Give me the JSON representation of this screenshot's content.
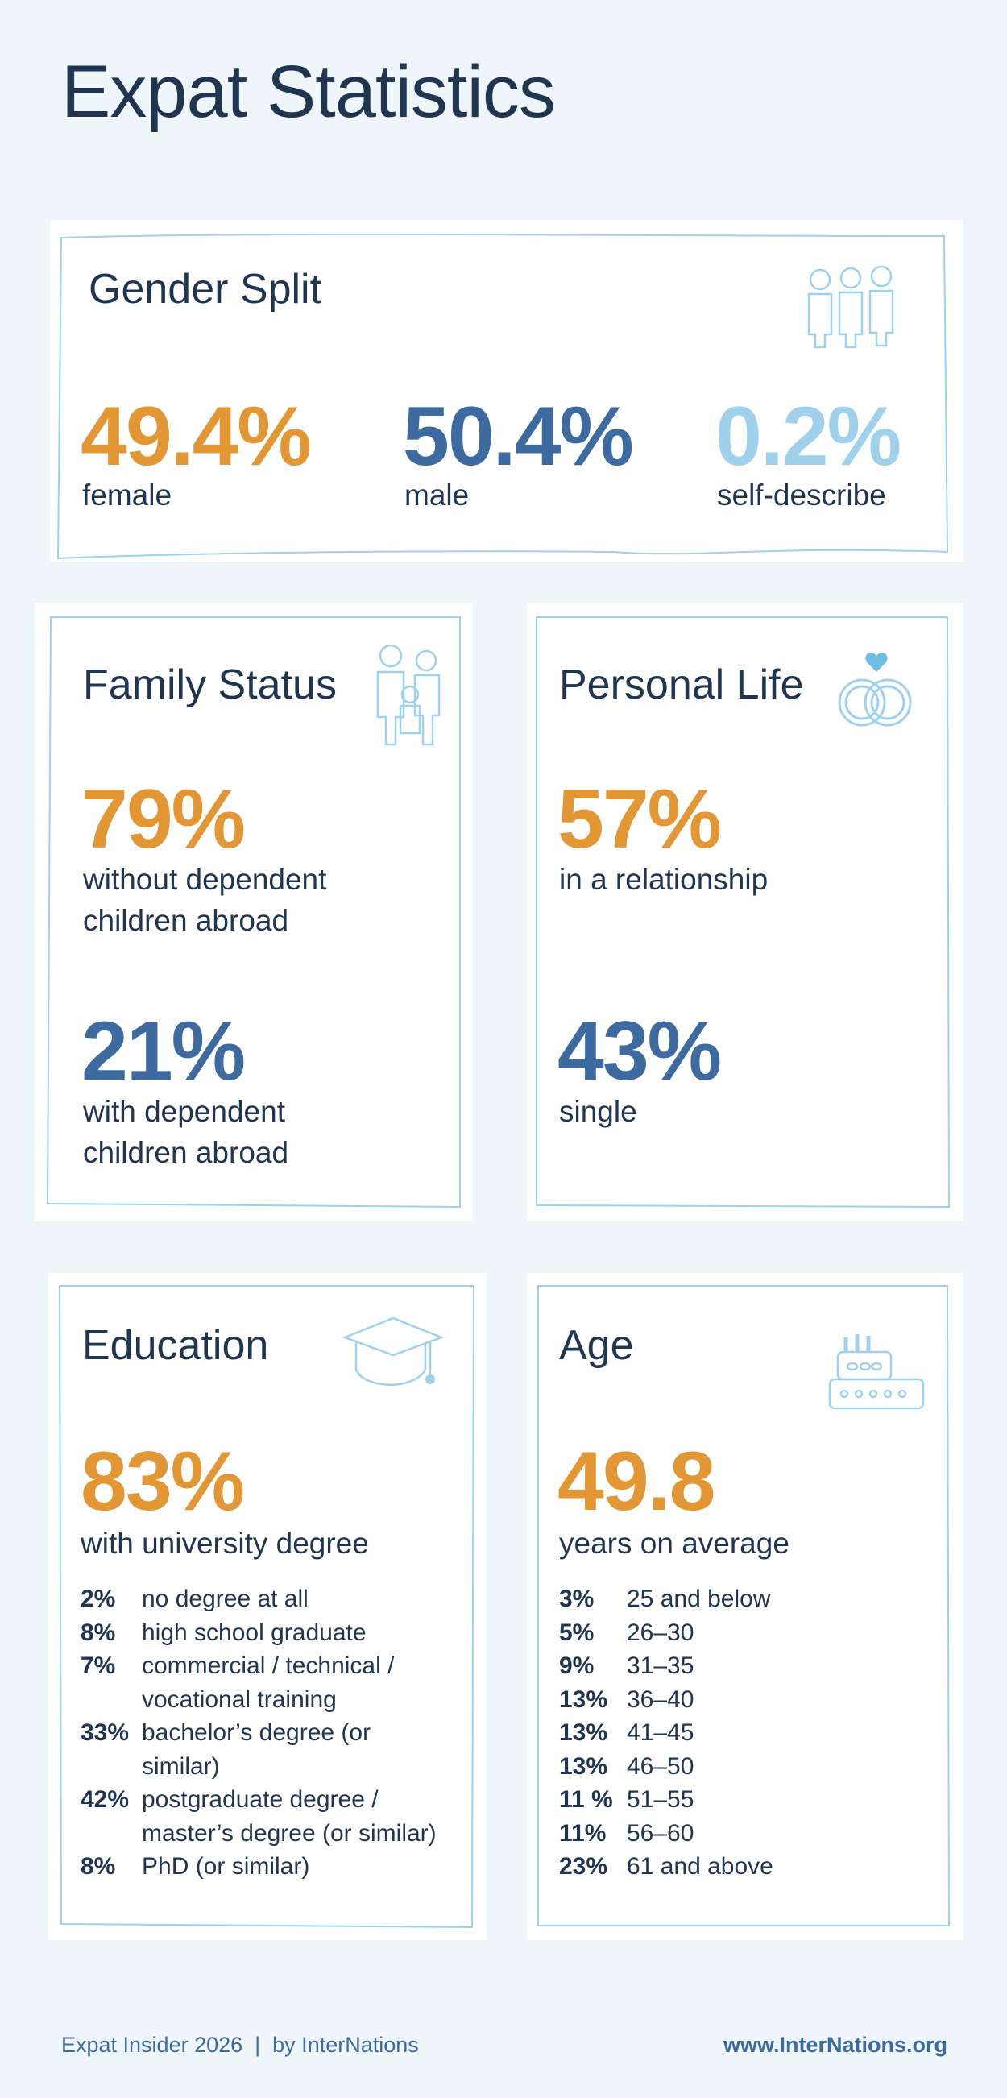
{
  "page": {
    "title": "Expat Statistics"
  },
  "gender": {
    "title": "Gender Split",
    "icon": "people-icon",
    "stats": [
      {
        "value": "49.4%",
        "label": "female",
        "color": "#e39634"
      },
      {
        "value": "50.4%",
        "label": "male",
        "color": "#3e6b9f"
      },
      {
        "value": "0.2%",
        "label": "self-describe",
        "color": "#9fd1ec"
      }
    ]
  },
  "family": {
    "title": "Family Status",
    "icon": "family-icon",
    "stats": [
      {
        "value": "79%",
        "label_lines": [
          "without dependent",
          "children abroad"
        ],
        "color": "#e39634"
      },
      {
        "value": "21%",
        "label_lines": [
          "with dependent",
          "children abroad"
        ],
        "color": "#3e6b9f"
      }
    ]
  },
  "personal": {
    "title": "Personal Life",
    "icon": "rings-heart-icon",
    "stats": [
      {
        "value": "57%",
        "label": "in a relationship",
        "color": "#e39634"
      },
      {
        "value": "43%",
        "label": "single",
        "color": "#3e6b9f"
      }
    ]
  },
  "education": {
    "title": "Education",
    "icon": "graduation-cap-icon",
    "headline": {
      "value": "83%",
      "label": "with university degree"
    },
    "breakdown": [
      {
        "pct": "2%",
        "lines": [
          "no degree at all"
        ]
      },
      {
        "pct": "8%",
        "lines": [
          "high school graduate"
        ]
      },
      {
        "pct": "7%",
        "lines": [
          "commercial / technical /",
          "vocational training"
        ]
      },
      {
        "pct": "33%",
        "lines": [
          "bachelor’s degree (or",
          "similar)"
        ]
      },
      {
        "pct": "42%",
        "lines": [
          "postgraduate degree /",
          "master’s degree (or similar)"
        ]
      },
      {
        "pct": "8%",
        "lines": [
          "PhD (or similar)"
        ]
      }
    ]
  },
  "age": {
    "title": "Age",
    "icon": "birthday-cake-icon",
    "headline": {
      "value": "49.8",
      "label": "years on average"
    },
    "breakdown": [
      {
        "pct": "3%",
        "range": "25 and below"
      },
      {
        "pct": "5%",
        "range": "26–30"
      },
      {
        "pct": "9%",
        "range": "31–35"
      },
      {
        "pct": "13%",
        "range": "36–40"
      },
      {
        "pct": "13%",
        "range": "41–45"
      },
      {
        "pct": "13%",
        "range": "46–50"
      },
      {
        "pct": "11 %",
        "range": "51–55"
      },
      {
        "pct": "11%",
        "range": "56–60"
      },
      {
        "pct": "23%",
        "range": "61 and above"
      }
    ]
  },
  "footer": {
    "left": "Expat Insider 2026  |  by InterNations",
    "right": "www.InterNations.org"
  }
}
